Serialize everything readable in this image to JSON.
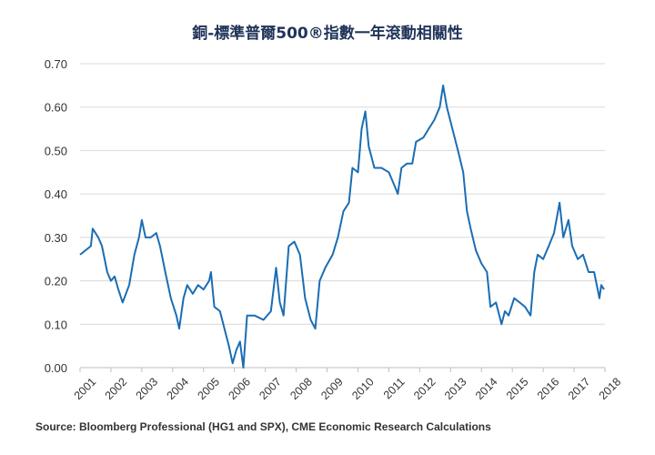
{
  "chart_data": {
    "type": "line",
    "title": "銅-標準普爾500®指數一年滾動相關性",
    "source": "Source: Bloomberg Professional (HG1 and SPX), CME Economic Research Calculations",
    "xlabel": "",
    "ylabel": "",
    "xlim": [
      2001,
      2018
    ],
    "ylim": [
      0,
      0.7
    ],
    "y_ticks": [
      "0.00",
      "0.10",
      "0.20",
      "0.30",
      "0.40",
      "0.50",
      "0.60",
      "0.70"
    ],
    "x_ticks": [
      "2001",
      "2002",
      "2003",
      "2004",
      "2005",
      "2006",
      "2007",
      "2008",
      "2009",
      "2010",
      "2011",
      "2012",
      "2013",
      "2014",
      "2015",
      "2016",
      "2017",
      "2018"
    ],
    "grid": "horizontal",
    "line_color": "#1b6db3",
    "series": [
      {
        "x": [
          2001.0,
          2001.35,
          2001.41,
          2001.59,
          2001.71,
          2001.88,
          2002.0,
          2002.12,
          2002.24,
          2002.38,
          2002.59,
          2002.76,
          2002.91,
          2003.0,
          2003.12,
          2003.29,
          2003.47,
          2003.59,
          2003.76,
          2003.94,
          2004.12,
          2004.21,
          2004.35,
          2004.47,
          2004.65,
          2004.82,
          2005.0,
          2005.18,
          2005.24,
          2005.35,
          2005.53,
          2005.71,
          2005.82,
          2005.94,
          2006.06,
          2006.18,
          2006.29,
          2006.41,
          2006.65,
          2006.94,
          2007.18,
          2007.35,
          2007.47,
          2007.59,
          2007.76,
          2007.94,
          2008.12,
          2008.29,
          2008.47,
          2008.62,
          2008.76,
          2008.94,
          2009.18,
          2009.35,
          2009.53,
          2009.71,
          2009.82,
          2010.0,
          2010.12,
          2010.24,
          2010.35,
          2010.53,
          2010.76,
          2011.0,
          2011.18,
          2011.29,
          2011.41,
          2011.59,
          2011.76,
          2011.88,
          2012.12,
          2012.29,
          2012.47,
          2012.65,
          2012.76,
          2012.88,
          2013.06,
          2013.24,
          2013.41,
          2013.53,
          2013.65,
          2013.82,
          2014.0,
          2014.18,
          2014.29,
          2014.47,
          2014.65,
          2014.76,
          2014.88,
          2015.06,
          2015.24,
          2015.41,
          2015.59,
          2015.71,
          2015.82,
          2016.0,
          2016.18,
          2016.35,
          2016.53,
          2016.65,
          2016.82,
          2016.94,
          2017.12,
          2017.29,
          2017.47,
          2017.65,
          2017.82,
          2017.88,
          2017.97
        ],
        "y": [
          0.26,
          0.28,
          0.32,
          0.3,
          0.28,
          0.22,
          0.2,
          0.21,
          0.18,
          0.15,
          0.19,
          0.26,
          0.3,
          0.34,
          0.3,
          0.3,
          0.31,
          0.28,
          0.22,
          0.16,
          0.12,
          0.09,
          0.16,
          0.19,
          0.17,
          0.19,
          0.18,
          0.2,
          0.22,
          0.14,
          0.13,
          0.08,
          0.05,
          0.01,
          0.04,
          0.06,
          0.0,
          0.12,
          0.12,
          0.11,
          0.13,
          0.23,
          0.15,
          0.12,
          0.28,
          0.29,
          0.26,
          0.16,
          0.11,
          0.09,
          0.2,
          0.23,
          0.26,
          0.3,
          0.36,
          0.38,
          0.46,
          0.45,
          0.55,
          0.59,
          0.51,
          0.46,
          0.46,
          0.45,
          0.42,
          0.4,
          0.46,
          0.47,
          0.47,
          0.52,
          0.53,
          0.55,
          0.57,
          0.6,
          0.65,
          0.6,
          0.55,
          0.5,
          0.45,
          0.36,
          0.32,
          0.27,
          0.24,
          0.22,
          0.14,
          0.15,
          0.1,
          0.13,
          0.12,
          0.16,
          0.15,
          0.14,
          0.12,
          0.22,
          0.26,
          0.25,
          0.28,
          0.31,
          0.38,
          0.3,
          0.34,
          0.28,
          0.25,
          0.26,
          0.22,
          0.22,
          0.16,
          0.19,
          0.18
        ]
      }
    ]
  }
}
